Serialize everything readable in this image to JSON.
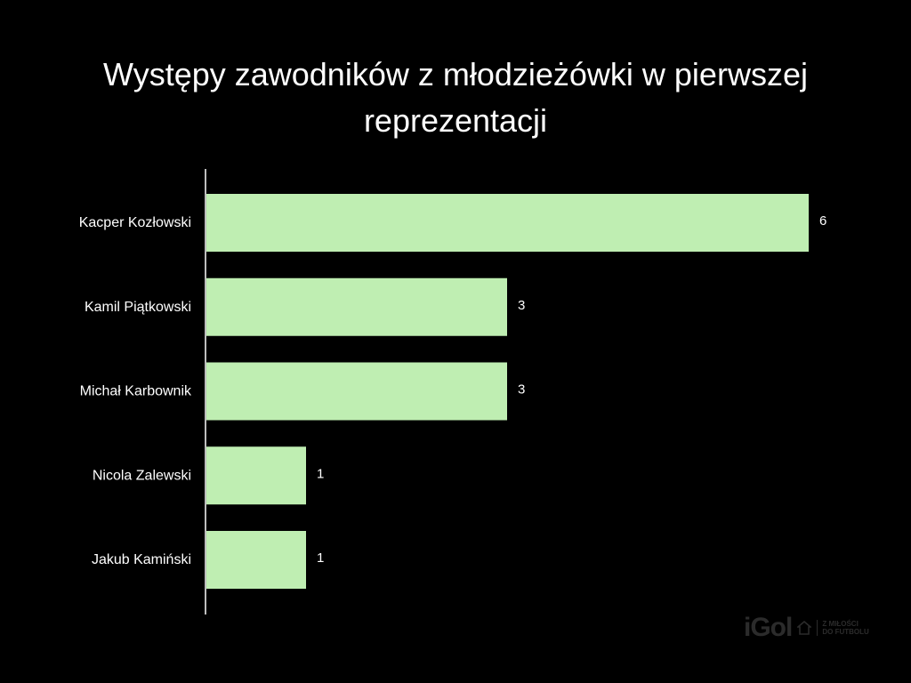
{
  "chart_data": {
    "type": "bar",
    "orientation": "horizontal",
    "title_lines": [
      "Występy zawodników z młodzieżówki w pierwszej",
      "reprezentacji"
    ],
    "categories": [
      "Kacper Kozłowski",
      "Kamil Piątkowski",
      "Michał Karbownik",
      "Nicola Zalewski",
      "Jakub Kamiński"
    ],
    "values": [
      6,
      3,
      3,
      1,
      1
    ],
    "value_labels": [
      "6",
      "3",
      "3",
      "1",
      "1"
    ],
    "xlim": [
      0,
      6
    ],
    "bar_color": "#bfeeb2",
    "axis_color": "#bdbdbd",
    "grid": false
  },
  "watermark": {
    "brand": "iGol",
    "tagline": [
      "Z MIŁOŚCI",
      "DO FUTBOLU"
    ]
  }
}
